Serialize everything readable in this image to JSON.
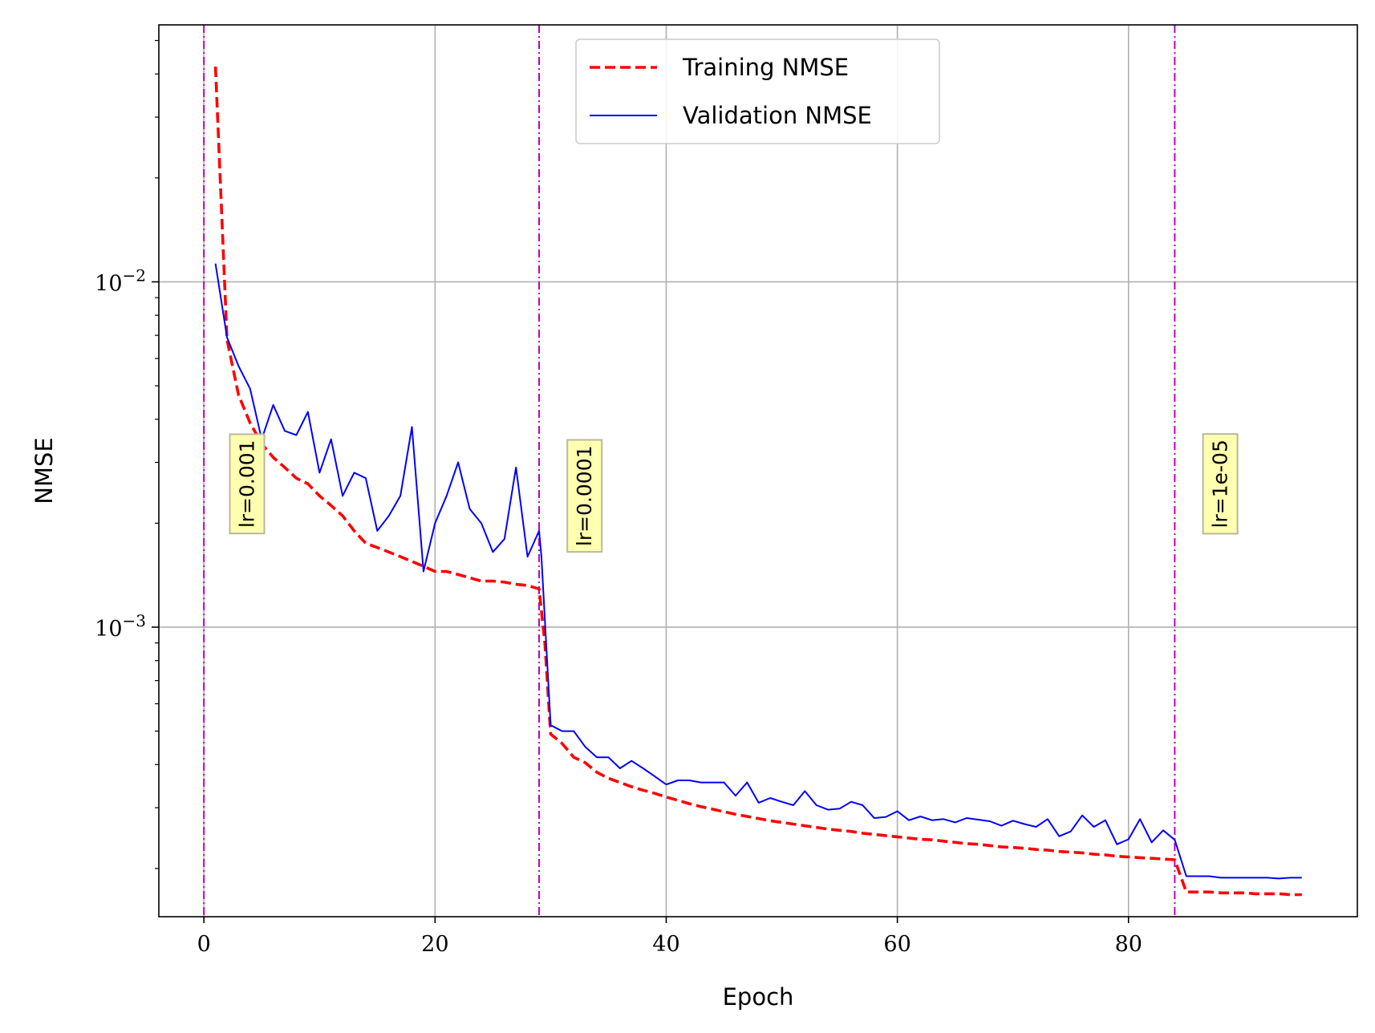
{
  "chart_data": {
    "type": "line",
    "xlabel": "Epoch",
    "ylabel": "NMSE",
    "yscale": "log",
    "xlim": [
      -3.9,
      99.8
    ],
    "ylim": [
      0.000145,
      0.0555
    ],
    "xticks": [
      0,
      20,
      40,
      60,
      80
    ],
    "yticks": [
      {
        "value": 0.01,
        "base": "10",
        "exp": "−2"
      },
      {
        "value": 0.001,
        "base": "10",
        "exp": "−3"
      }
    ],
    "grid": true,
    "legend": {
      "position": "top-center",
      "entries": [
        "Training NMSE",
        "Validation NMSE"
      ]
    },
    "series": [
      {
        "name": "Training NMSE",
        "color": "#ff0000",
        "style": "dashed",
        "x": [
          1,
          2,
          3,
          4,
          5,
          6,
          7,
          8,
          9,
          10,
          11,
          12,
          13,
          14,
          15,
          16,
          17,
          18,
          19,
          20,
          21,
          22,
          23,
          24,
          25,
          26,
          27,
          28,
          29,
          29.5,
          30,
          31,
          32,
          33,
          34,
          35,
          36,
          37,
          38,
          39,
          40,
          41,
          42,
          43,
          44,
          45,
          46,
          47,
          48,
          49,
          50,
          51,
          52,
          53,
          54,
          55,
          56,
          57,
          58,
          59,
          60,
          61,
          62,
          63,
          64,
          65,
          66,
          67,
          68,
          69,
          70,
          71,
          72,
          73,
          74,
          75,
          76,
          77,
          78,
          79,
          80,
          81,
          82,
          83,
          84,
          85,
          86,
          87,
          88,
          89,
          90,
          91,
          92,
          93,
          94,
          95
        ],
        "values": [
          0.042,
          0.0068,
          0.0047,
          0.0039,
          0.0034,
          0.0031,
          0.0029,
          0.0027,
          0.0026,
          0.0024,
          0.00225,
          0.0021,
          0.0019,
          0.00175,
          0.0017,
          0.00165,
          0.0016,
          0.00155,
          0.0015,
          0.00145,
          0.00145,
          0.00142,
          0.00139,
          0.00136,
          0.00136,
          0.00135,
          0.00133,
          0.00132,
          0.00129,
          0.0009,
          0.00049,
          0.00046,
          0.00042,
          0.000405,
          0.00038,
          0.000365,
          0.000355,
          0.000345,
          0.000337,
          0.00033,
          0.000322,
          0.000315,
          0.000308,
          0.000302,
          0.000297,
          0.000292,
          0.000287,
          0.000283,
          0.000279,
          0.000275,
          0.000272,
          0.000269,
          0.000266,
          0.000263,
          0.00026,
          0.000258,
          0.000256,
          0.000253,
          0.000251,
          0.000249,
          0.000247,
          0.000245,
          0.000243,
          0.000242,
          0.00024,
          0.000238,
          0.000236,
          0.000235,
          0.000233,
          0.000231,
          0.00023,
          0.000229,
          0.000227,
          0.000226,
          0.000224,
          0.000223,
          0.000222,
          0.00022,
          0.000219,
          0.000217,
          0.000216,
          0.000215,
          0.000214,
          0.000213,
          0.000212,
          0.000171,
          0.000171,
          0.000171,
          0.00017,
          0.00017,
          0.00017,
          0.000169,
          0.000169,
          0.000169,
          0.000168,
          0.000168
        ]
      },
      {
        "name": "Validation NMSE",
        "color": "#0000ff",
        "style": "solid",
        "x": [
          1,
          2,
          3,
          4,
          5,
          6,
          7,
          8,
          9,
          10,
          11,
          12,
          13,
          14,
          15,
          16,
          17,
          18,
          19,
          20,
          21,
          22,
          23,
          24,
          25,
          26,
          27,
          28,
          29,
          29.2,
          30,
          31,
          32,
          33,
          34,
          35,
          36,
          37,
          38,
          39,
          40,
          41,
          42,
          43,
          44,
          45,
          46,
          47,
          48,
          49,
          50,
          51,
          52,
          53,
          54,
          55,
          56,
          57,
          58,
          59,
          60,
          61,
          62,
          63,
          64,
          65,
          66,
          67,
          68,
          69,
          70,
          71,
          72,
          73,
          74,
          75,
          76,
          77,
          78,
          79,
          80,
          81,
          82,
          83,
          84,
          85,
          86,
          87,
          88,
          89,
          90,
          91,
          92,
          93,
          94,
          95
        ],
        "values": [
          0.0113,
          0.0069,
          0.0057,
          0.0049,
          0.0035,
          0.0044,
          0.0037,
          0.0036,
          0.0042,
          0.0028,
          0.0035,
          0.0024,
          0.0028,
          0.0027,
          0.0019,
          0.0021,
          0.0024,
          0.0038,
          0.00145,
          0.002,
          0.0024,
          0.003,
          0.0022,
          0.002,
          0.00165,
          0.0018,
          0.0029,
          0.0016,
          0.0019,
          0.0016,
          0.00052,
          0.0005,
          0.0005,
          0.00045,
          0.00042,
          0.00042,
          0.00039,
          0.00041,
          0.00039,
          0.00037,
          0.00035,
          0.00036,
          0.00036,
          0.000355,
          0.000355,
          0.000355,
          0.000325,
          0.000355,
          0.00031,
          0.00032,
          0.000312,
          0.000305,
          0.000335,
          0.000305,
          0.000296,
          0.000298,
          0.000312,
          0.000305,
          0.00028,
          0.000282,
          0.000293,
          0.000276,
          0.000283,
          0.000276,
          0.000278,
          0.000272,
          0.00028,
          0.000277,
          0.000274,
          0.000266,
          0.000275,
          0.000269,
          0.000264,
          0.000278,
          0.000248,
          0.000256,
          0.000285,
          0.000264,
          0.000276,
          0.000235,
          0.000243,
          0.000278,
          0.000238,
          0.000258,
          0.000242,
          0.00019,
          0.00019,
          0.00019,
          0.000188,
          0.000188,
          0.000188,
          0.000188,
          0.000188,
          0.000187,
          0.000188,
          0.000188
        ]
      }
    ],
    "vlines": {
      "color": "#bf00bf",
      "style": "dashdot",
      "x": [
        0,
        29,
        84
      ]
    },
    "annotations": [
      {
        "x": 3.7,
        "y": 0.0026,
        "text": "lr=0.001"
      },
      {
        "x": 32.9,
        "y": 0.0024,
        "text": "lr=0.0001"
      },
      {
        "x": 87.9,
        "y": 0.0026,
        "text": "lr=1e-05"
      }
    ]
  }
}
